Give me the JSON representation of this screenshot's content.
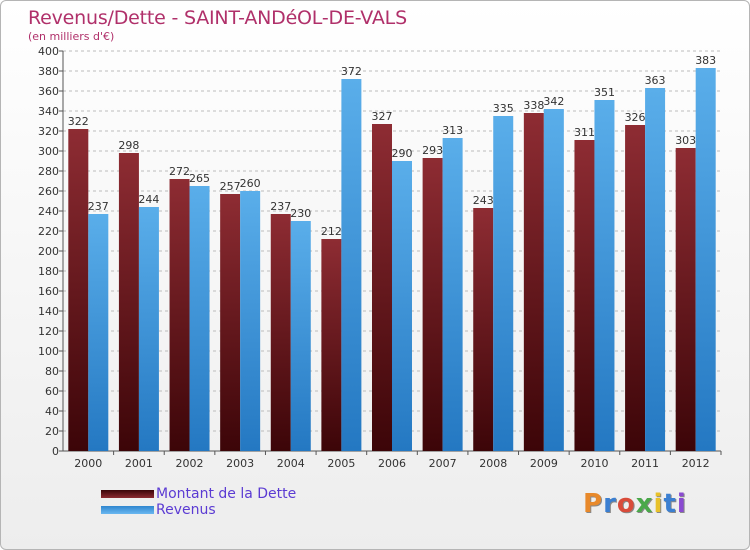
{
  "title": "Revenus/Dette - SAINT-ANDéOL-DE-VALS",
  "subtitle": "(en milliers d'€)",
  "logo_text": "Proxiti",
  "colors": {
    "dette": "#7a1a22",
    "revenus": "#4a9fe0",
    "title": "#b0306a",
    "legend_text": "#5b3bd3",
    "grid": "#bcbcbc"
  },
  "chart_data": {
    "type": "bar",
    "title": "Revenus/Dette - SAINT-ANDéOL-DE-VALS",
    "subtitle": "(en milliers d'€)",
    "categories": [
      "2000",
      "2001",
      "2002",
      "2003",
      "2004",
      "2005",
      "2006",
      "2007",
      "2008",
      "2009",
      "2010",
      "2011",
      "2012"
    ],
    "series": [
      {
        "name": "Montant de la Dette",
        "values": [
          322,
          298,
          272,
          257,
          237,
          212,
          327,
          293,
          243,
          338,
          311,
          326,
          303
        ]
      },
      {
        "name": "Revenus",
        "values": [
          237,
          244,
          265,
          260,
          230,
          372,
          290,
          313,
          335,
          342,
          351,
          363,
          383
        ]
      }
    ],
    "ylim": [
      0,
      400
    ],
    "ytick_step": 20,
    "grid": true,
    "legend_position": "bottom-left"
  }
}
